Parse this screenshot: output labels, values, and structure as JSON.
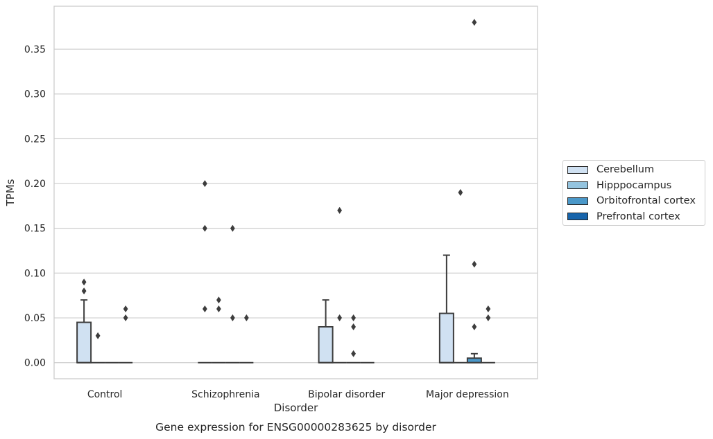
{
  "chart_data": {
    "type": "box",
    "title": "Gene expression for ENSG00000283625 by disorder",
    "xlabel": "Disorder",
    "ylabel": "TPMs",
    "ylim": [
      -0.018,
      0.398
    ],
    "yticks": [
      "0.00",
      "0.05",
      "0.10",
      "0.15",
      "0.20",
      "0.25",
      "0.30",
      "0.35"
    ],
    "categories": [
      "Control",
      "Schizophrenia",
      "Bipolar disorder",
      "Major depression"
    ],
    "grid": "horizontal",
    "legend_position": "right",
    "series": [
      {
        "name": "Cerebellum",
        "color": "#d0e1f2",
        "boxes": [
          {
            "q1": 0,
            "median": 0,
            "q3": 0.045,
            "whisker_low": 0,
            "whisker_high": 0.07,
            "outliers": [
              0.08,
              0.09
            ]
          },
          {
            "q1": 0,
            "median": 0,
            "q3": 0,
            "whisker_low": 0,
            "whisker_high": 0,
            "outliers": [
              0.06,
              0.15,
              0.2
            ]
          },
          {
            "q1": 0,
            "median": 0,
            "q3": 0.04,
            "whisker_low": 0,
            "whisker_high": 0.07,
            "outliers": []
          },
          {
            "q1": 0,
            "median": 0,
            "q3": 0.055,
            "whisker_low": 0,
            "whisker_high": 0.12,
            "outliers": []
          }
        ]
      },
      {
        "name": "Hipppocampus",
        "color": "#94c4df",
        "boxes": [
          {
            "q1": 0,
            "median": 0,
            "q3": 0,
            "whisker_low": 0,
            "whisker_high": 0,
            "outliers": [
              0.03
            ]
          },
          {
            "q1": 0,
            "median": 0,
            "q3": 0,
            "whisker_low": 0,
            "whisker_high": 0,
            "outliers": [
              0.06,
              0.07
            ]
          },
          {
            "q1": 0,
            "median": 0,
            "q3": 0,
            "whisker_low": 0,
            "whisker_high": 0,
            "outliers": [
              0.05,
              0.17
            ]
          },
          {
            "q1": 0,
            "median": 0,
            "q3": 0,
            "whisker_low": 0,
            "whisker_high": 0,
            "outliers": [
              0.19
            ]
          }
        ]
      },
      {
        "name": "Orbitofrontal cortex",
        "color": "#4a98c9",
        "boxes": [
          {
            "q1": 0,
            "median": 0,
            "q3": 0,
            "whisker_low": 0,
            "whisker_high": 0,
            "outliers": []
          },
          {
            "q1": 0,
            "median": 0,
            "q3": 0,
            "whisker_low": 0,
            "whisker_high": 0,
            "outliers": [
              0.05,
              0.15
            ]
          },
          {
            "q1": 0,
            "median": 0,
            "q3": 0,
            "whisker_low": 0,
            "whisker_high": 0,
            "outliers": [
              0.01,
              0.04,
              0.05
            ]
          },
          {
            "q1": 0,
            "median": 0,
            "q3": 0.005,
            "whisker_low": 0,
            "whisker_high": 0.01,
            "outliers": [
              0.04,
              0.11,
              0.38
            ]
          }
        ]
      },
      {
        "name": "Prefrontal cortex",
        "color": "#1764ab",
        "boxes": [
          {
            "q1": 0,
            "median": 0,
            "q3": 0,
            "whisker_low": 0,
            "whisker_high": 0,
            "outliers": [
              0.05,
              0.06
            ]
          },
          {
            "q1": 0,
            "median": 0,
            "q3": 0,
            "whisker_low": 0,
            "whisker_high": 0,
            "outliers": [
              0.05
            ]
          },
          {
            "q1": 0,
            "median": 0,
            "q3": 0,
            "whisker_low": 0,
            "whisker_high": 0,
            "outliers": []
          },
          {
            "q1": 0,
            "median": 0,
            "q3": 0,
            "whisker_low": 0,
            "whisker_high": 0,
            "outliers": [
              0.05,
              0.06
            ]
          }
        ]
      }
    ]
  }
}
